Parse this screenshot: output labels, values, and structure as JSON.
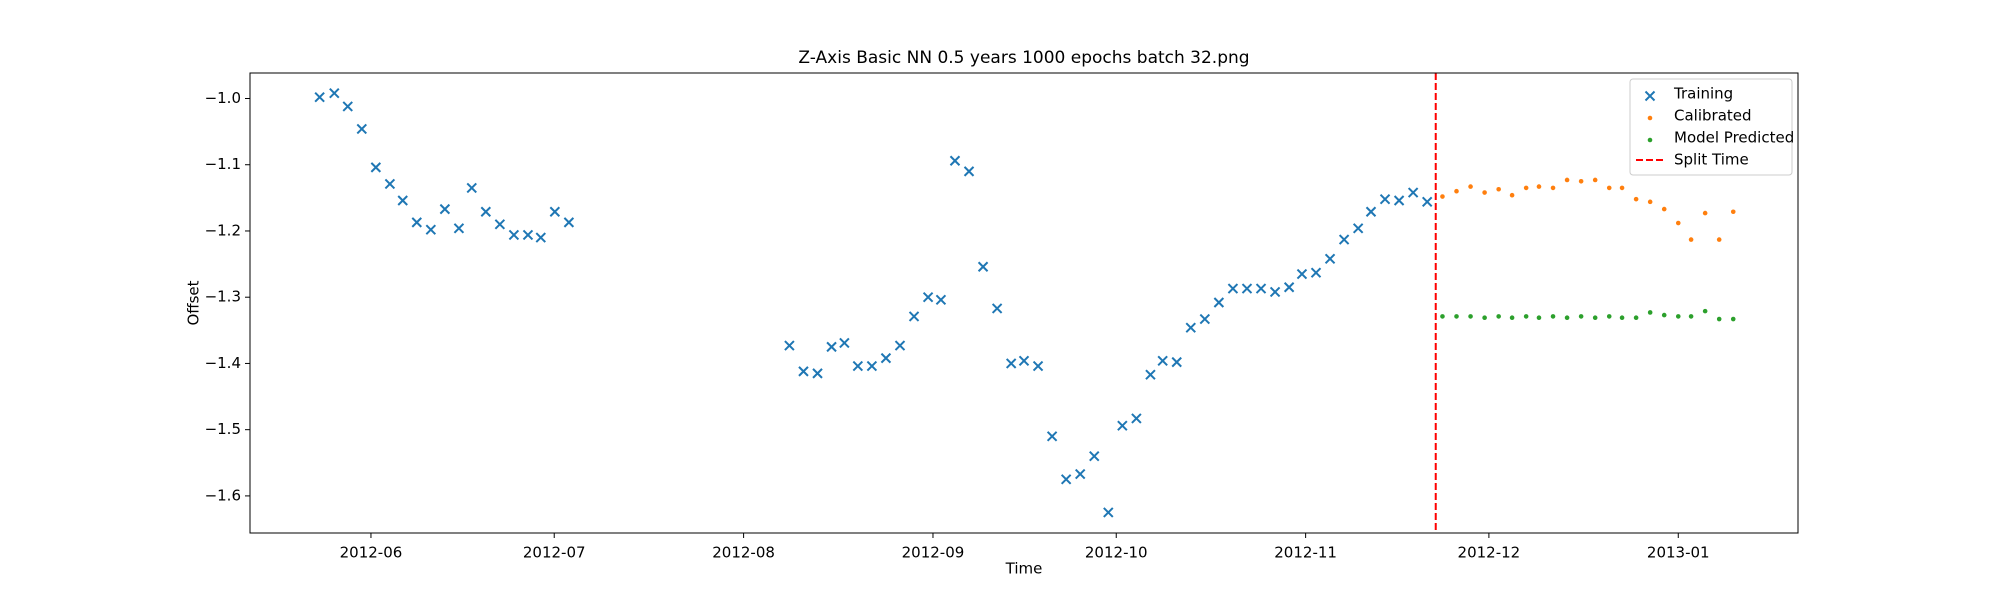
{
  "chart_data": {
    "type": "scatter",
    "title": "Z-Axis Basic NN 0.5 years 1000 epochs batch 32.png",
    "x_label": "Time",
    "y_label": "Offset",
    "xlim": [
      15472.2,
      15725.6
    ],
    "ylim": [
      -1.656,
      -0.9615
    ],
    "xticks": [
      {
        "value": 15492,
        "label": "2012-06"
      },
      {
        "value": 15522,
        "label": "2012-07"
      },
      {
        "value": 15553,
        "label": "2012-08"
      },
      {
        "value": 15584,
        "label": "2012-09"
      },
      {
        "value": 15614,
        "label": "2012-10"
      },
      {
        "value": 15645,
        "label": "2012-11"
      },
      {
        "value": 15675,
        "label": "2012-12"
      },
      {
        "value": 15706,
        "label": "2013-01"
      }
    ],
    "yticks": [
      {
        "value": -1.0,
        "label": "−1.0"
      },
      {
        "value": -1.1,
        "label": "−1.1"
      },
      {
        "value": -1.2,
        "label": "−1.2"
      },
      {
        "value": -1.3,
        "label": "−1.3"
      },
      {
        "value": -1.4,
        "label": "−1.4"
      },
      {
        "value": -1.5,
        "label": "−1.5"
      },
      {
        "value": -1.6,
        "label": "−1.6"
      }
    ],
    "grid": false,
    "legend_position": "upper right",
    "series": [
      {
        "name": "Training",
        "color": "#1f77b4",
        "marker": "x",
        "x": [
          15483.6,
          15486.0,
          15488.2,
          15490.5,
          15492.8,
          15495.1,
          15497.2,
          15499.5,
          15501.8,
          15504.1,
          15506.4,
          15508.5,
          15510.8,
          15513.1,
          15515.4,
          15517.7,
          15519.8,
          15522.1,
          15524.4,
          15560.5,
          15562.8,
          15565.1,
          15567.4,
          15569.5,
          15571.7,
          15574.0,
          15576.3,
          15578.6,
          15580.9,
          15583.2,
          15585.3,
          15587.6,
          15589.9,
          15592.2,
          15594.5,
          15596.8,
          15598.9,
          15601.2,
          15603.5,
          15605.8,
          15608.1,
          15610.4,
          15612.7,
          15615.0,
          15617.3,
          15619.6,
          15621.6,
          15623.9,
          15626.2,
          15628.5,
          15630.8,
          15633.1,
          15635.4,
          15637.7,
          15640.0,
          15642.3,
          15644.4,
          15646.7,
          15649.0,
          15651.3,
          15653.6,
          15655.7,
          15658.0,
          15660.3,
          15662.6,
          15664.9
        ],
        "values": [
          -0.998,
          -0.992,
          -1.012,
          -1.046,
          -1.104,
          -1.129,
          -1.154,
          -1.187,
          -1.198,
          -1.167,
          -1.196,
          -1.135,
          -1.171,
          -1.19,
          -1.206,
          -1.206,
          -1.21,
          -1.171,
          -1.187,
          -1.373,
          -1.412,
          -1.415,
          -1.375,
          -1.369,
          -1.404,
          -1.404,
          -1.392,
          -1.373,
          -1.329,
          -1.3,
          -1.304,
          -1.094,
          -1.11,
          -1.254,
          -1.317,
          -1.4,
          -1.396,
          -1.404,
          -1.51,
          -1.575,
          -1.567,
          -1.54,
          -1.625,
          -1.494,
          -1.483,
          -1.417,
          -1.396,
          -1.398,
          -1.346,
          -1.333,
          -1.308,
          -1.287,
          -1.287,
          -1.287,
          -1.292,
          -1.285,
          -1.265,
          -1.263,
          -1.242,
          -1.213,
          -1.196,
          -1.171,
          -1.152,
          -1.154,
          -1.142,
          -1.156
        ]
      },
      {
        "name": "Calibrated",
        "color": "#ff7f0e",
        "marker": ".",
        "x": [
          15667.4,
          15669.7,
          15672.0,
          15674.3,
          15676.6,
          15678.8,
          15681.1,
          15683.2,
          15685.5,
          15687.8,
          15690.1,
          15692.4,
          15694.7,
          15696.8,
          15699.1,
          15701.4,
          15703.7,
          15706.0,
          15708.1,
          15710.4,
          15712.7,
          15715.0
        ],
        "values": [
          -1.148,
          -1.14,
          -1.133,
          -1.142,
          -1.137,
          -1.146,
          -1.135,
          -1.133,
          -1.135,
          -1.123,
          -1.125,
          -1.123,
          -1.135,
          -1.135,
          -1.152,
          -1.156,
          -1.167,
          -1.188,
          -1.213,
          -1.173,
          -1.213,
          -1.171
        ]
      },
      {
        "name": "Model Predicted",
        "color": "#2ca02c",
        "marker": ".",
        "x": [
          15667.4,
          15669.7,
          15672.0,
          15674.3,
          15676.6,
          15678.8,
          15681.1,
          15683.2,
          15685.5,
          15687.8,
          15690.1,
          15692.4,
          15694.7,
          15696.8,
          15699.1,
          15701.4,
          15703.7,
          15706.0,
          15708.1,
          15710.4,
          15712.7,
          15715.0
        ],
        "values": [
          -1.329,
          -1.329,
          -1.329,
          -1.331,
          -1.329,
          -1.331,
          -1.329,
          -1.331,
          -1.329,
          -1.331,
          -1.329,
          -1.331,
          -1.329,
          -1.331,
          -1.331,
          -1.323,
          -1.327,
          -1.329,
          -1.329,
          -1.321,
          -1.333,
          -1.333
        ]
      }
    ],
    "split_time": {
      "name": "Split Time",
      "color": "#ff0000",
      "x": 15666.3
    }
  }
}
